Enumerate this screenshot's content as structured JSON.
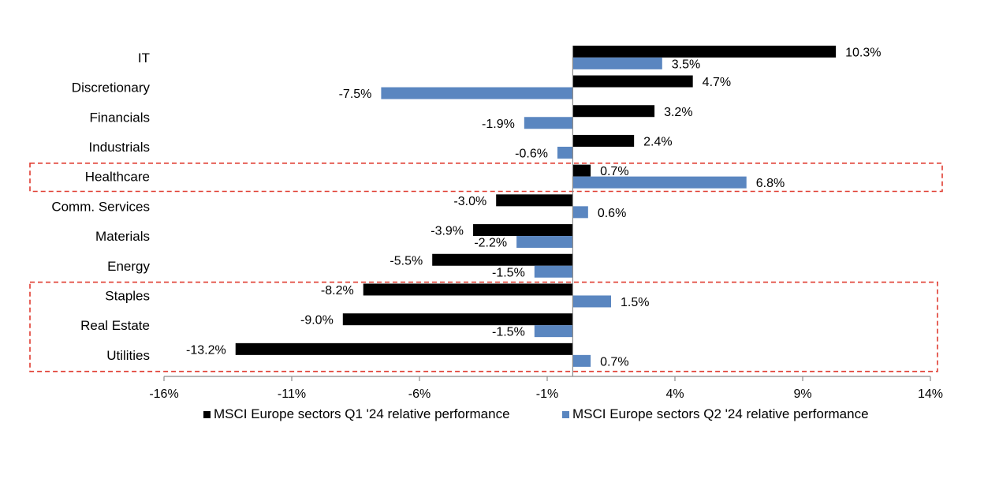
{
  "chart_data": {
    "type": "bar",
    "orientation": "horizontal",
    "categories": [
      "IT",
      "Discretionary",
      "Financials",
      "Industrials",
      "Healthcare",
      "Comm. Services",
      "Materials",
      "Energy",
      "Staples",
      "Real Estate",
      "Utilities"
    ],
    "series": [
      {
        "name": "MSCI Europe sectors Q1 '24 relative performance",
        "color": "#000000",
        "values": [
          10.3,
          4.7,
          3.2,
          2.4,
          0.7,
          -3.0,
          -3.9,
          -5.5,
          -8.2,
          -9.0,
          -13.2
        ],
        "labels": [
          "10.3%",
          "4.7%",
          "3.2%",
          "2.4%",
          "0.7%",
          "-3.0%",
          "-3.9%",
          "-5.5%",
          "-8.2%",
          "-9.0%",
          "-13.2%"
        ]
      },
      {
        "name": "MSCI Europe sectors Q2 '24 relative performance",
        "color": "#5a86c0",
        "values": [
          3.5,
          -7.5,
          -1.9,
          -0.6,
          6.8,
          0.6,
          -2.2,
          -1.5,
          1.5,
          -1.5,
          0.7
        ],
        "labels": [
          "3.5%",
          "-7.5%",
          "-1.9%",
          "-0.6%",
          "6.8%",
          "0.6%",
          "-2.2%",
          "-1.5%",
          "1.5%",
          "-1.5%",
          "0.7%"
        ]
      }
    ],
    "xlim": [
      -16,
      14
    ],
    "xticks": [
      -16,
      -11,
      -6,
      -1,
      4,
      9,
      14
    ],
    "xtick_labels": [
      "-16%",
      "-11%",
      "-6%",
      "-1%",
      "4%",
      "9%",
      "14%"
    ],
    "grid": false,
    "legend_position": "bottom",
    "highlight_boxes": [
      {
        "categories": [
          "Healthcare"
        ],
        "color": "#e03c31"
      },
      {
        "categories": [
          "Staples",
          "Real Estate",
          "Utilities"
        ],
        "color": "#e03c31"
      }
    ]
  }
}
